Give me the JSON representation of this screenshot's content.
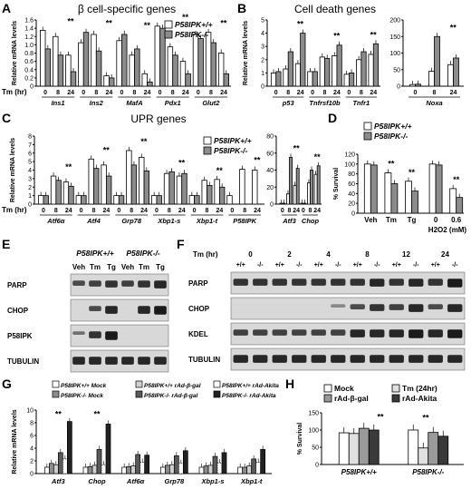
{
  "panels": {
    "a": {
      "letter": "A",
      "title": "β cell-specific genes"
    },
    "b": {
      "letter": "B",
      "title": "Cell death genes"
    },
    "c": {
      "letter": "C",
      "title": "UPR genes"
    },
    "d": {
      "letter": "D"
    },
    "e": {
      "letter": "E"
    },
    "f": {
      "letter": "F"
    },
    "g": {
      "letter": "G"
    },
    "h": {
      "letter": "H"
    }
  },
  "legend_wt": "P58IPK+/+",
  "legend_ko": "P58IPK-/-",
  "tm_label": "Tm (hr)",
  "timepoints": [
    "0",
    "8",
    "24"
  ],
  "colors": {
    "wt": "#ffffff",
    "ko": "#8c8c8c",
    "blot_band": "#1a1a1a",
    "blot_bg": "#d8d8d8"
  },
  "chart_data": [
    {
      "panel": "A",
      "type": "bar",
      "ylabel": "Relative mRNA levels",
      "ylim": [
        0,
        1.6
      ],
      "yticks": [
        "0",
        "0.2",
        "0.4",
        "0.6",
        "0.8",
        "1.0",
        "1.2",
        "1.4",
        "1.6"
      ],
      "categories": [
        "Ins1",
        "Ins2",
        "MafA",
        "Pdx1",
        "Glut2"
      ],
      "series": [
        {
          "name": "P58IPK+/+",
          "values": [
            [
              1.35,
              1.2,
              0.75
            ],
            [
              1.05,
              1.25,
              0.25
            ],
            [
              1.1,
              0.75,
              0.3
            ],
            [
              1.45,
              0.95,
              0.6
            ],
            [
              1.25,
              1.3,
              0.8
            ]
          ]
        },
        {
          "name": "P58IPK-/-",
          "values": [
            [
              0.9,
              0.75,
              0.35
            ],
            [
              1.3,
              0.85,
              0.2
            ],
            [
              1.25,
              0.9,
              0.1
            ],
            [
              1.4,
              0.75,
              0.3
            ],
            [
              1.15,
              1.05,
              0.3
            ]
          ]
        }
      ]
    },
    {
      "panel": "B1",
      "type": "bar",
      "ylabel": "Relative mRNA levels",
      "ylim": [
        0,
        5
      ],
      "yticks": [
        "0",
        "1",
        "2",
        "3",
        "4",
        "5"
      ],
      "categories": [
        "p53",
        "Tnfrsf10b",
        "Tnfr1"
      ],
      "series": [
        {
          "name": "P58IPK+/+",
          "values": [
            [
              1.0,
              1.3,
              1.7
            ],
            [
              1.1,
              2.2,
              2.3
            ],
            [
              0.9,
              2.0,
              2.4
            ]
          ]
        },
        {
          "name": "P58IPK-/-",
          "values": [
            [
              1.1,
              2.6,
              4.0
            ],
            [
              1.1,
              2.1,
              3.1
            ],
            [
              1.0,
              2.6,
              3.2
            ]
          ]
        }
      ]
    },
    {
      "panel": "B2",
      "type": "bar",
      "ylabel": "",
      "ylim": [
        0,
        200
      ],
      "yticks": [
        "0",
        "50",
        "100",
        "150",
        "200"
      ],
      "categories": [
        "Noxa"
      ],
      "series": [
        {
          "name": "P58IPK+/+",
          "values": [
            [
              5,
              45,
              65
            ]
          ]
        },
        {
          "name": "P58IPK-/-",
          "values": [
            [
              6,
              150,
              85
            ]
          ]
        }
      ]
    },
    {
      "panel": "C1",
      "type": "bar",
      "ylabel": "Relative mRNA levels",
      "ylim": [
        0,
        8
      ],
      "yticks": [
        "0",
        "1",
        "2",
        "3",
        "4",
        "5",
        "6",
        "7",
        "8"
      ],
      "categories": [
        "Atf6α",
        "Atf4",
        "Grp78",
        "Xbp1-s",
        "Xbp1-t",
        "P58IPK"
      ],
      "series": [
        {
          "name": "P58IPK+/+",
          "values": [
            [
              1.0,
              3.3,
              2.6
            ],
            [
              1.0,
              5.3,
              4.6
            ],
            [
              1.0,
              6.3,
              5.5
            ],
            [
              1.0,
              3.6,
              3.3
            ],
            [
              1.0,
              2.8,
              2.9
            ],
            [
              1.0,
              4.1,
              4.0
            ]
          ]
        },
        {
          "name": "P58IPK-/-",
          "values": [
            [
              1.0,
              2.8,
              2.1
            ],
            [
              1.0,
              4.2,
              3.3
            ],
            [
              1.0,
              4.6,
              3.9
            ],
            [
              1.0,
              3.8,
              3.6
            ],
            [
              1.0,
              2.2,
              2.0
            ],
            [
              0,
              0,
              0
            ]
          ]
        }
      ]
    },
    {
      "panel": "C2",
      "type": "bar",
      "ylabel": "",
      "ylim": [
        0,
        80
      ],
      "yticks": [
        "0",
        "20",
        "40",
        "60",
        "80"
      ],
      "categories": [
        "Atf3",
        "Chop"
      ],
      "series": [
        {
          "name": "P58IPK+/+",
          "values": [
            [
              1,
              12,
              22
            ],
            [
              1,
              25,
              35
            ]
          ]
        },
        {
          "name": "P58IPK-/-",
          "values": [
            [
              1,
              55,
              42
            ],
            [
              1,
              40,
              45
            ]
          ]
        }
      ]
    },
    {
      "panel": "D",
      "type": "bar",
      "ylabel": "% Survival",
      "ylim": [
        0,
        120
      ],
      "yticks": [
        "0",
        "20",
        "40",
        "60",
        "80",
        "100",
        "120"
      ],
      "categories": [
        "Veh",
        "Tm",
        "Tg",
        "0",
        "0.6"
      ],
      "xlabel": "H2O2 (mM)",
      "series": [
        {
          "name": "P58IPK+/+",
          "values": [
            100,
            82,
            65,
            100,
            50
          ]
        },
        {
          "name": "P58IPK-/-",
          "values": [
            98,
            60,
            45,
            98,
            32
          ]
        }
      ]
    },
    {
      "panel": "G",
      "type": "bar",
      "ylabel": "Relative mRNA levels",
      "ylim": [
        0,
        10
      ],
      "yticks": [
        "0",
        "2",
        "4",
        "6",
        "8",
        "10"
      ],
      "categories": [
        "Atf3",
        "Chop",
        "Atf6α",
        "Grp78",
        "Xbp1-s",
        "Xbp1-t"
      ],
      "series": [
        {
          "name": "P58IPK+/+ Mock",
          "values": [
            1.0,
            1.0,
            1.0,
            1.0,
            1.0,
            1.0
          ]
        },
        {
          "name": "P58IPK-/- Mock",
          "values": [
            1.6,
            1.1,
            1.1,
            1.3,
            1.2,
            1.0
          ]
        },
        {
          "name": "P58IPK+/+ rAd-β-gal",
          "values": [
            1.4,
            1.3,
            1.2,
            1.4,
            1.3,
            1.2
          ]
        },
        {
          "name": "P58IPK-/- rAd-β-gal",
          "values": [
            3.3,
            3.8,
            3.0,
            2.8,
            2.7,
            2.3
          ]
        },
        {
          "name": "P58IPK+/+ rAd-Akita",
          "values": [
            2.3,
            1.4,
            1.8,
            1.6,
            1.7,
            1.8
          ]
        },
        {
          "name": "P58IPK-/- rAd-Akita",
          "values": [
            8.2,
            7.8,
            2.9,
            3.6,
            3.3,
            3.8
          ]
        }
      ]
    },
    {
      "panel": "H",
      "type": "bar",
      "ylabel": "% Survival",
      "ylim": [
        0,
        150
      ],
      "yticks": [
        "0",
        "50",
        "100",
        "150"
      ],
      "categories": [
        "P58IPK+/+",
        "P58IPK-/-"
      ],
      "series": [
        {
          "name": "Mock",
          "values": [
            92,
            100
          ]
        },
        {
          "name": "Tm (24hr)",
          "values": [
            90,
            48
          ]
        },
        {
          "name": "rAd-β-gal",
          "values": [
            105,
            93
          ]
        },
        {
          "name": "rAd-Akita",
          "values": [
            100,
            82
          ]
        }
      ]
    }
  ],
  "significance": "**",
  "blot_e": {
    "groups": [
      "P58IPK+/+",
      "P58IPK-/-"
    ],
    "lanes": [
      "Veh",
      "Tm",
      "Tg",
      "Veh",
      "Tm",
      "Tg"
    ],
    "rows": [
      "PARP",
      "CHOP",
      "P58IPK",
      "TUBULIN"
    ]
  },
  "blot_f": {
    "tm_label": "Tm (hr)",
    "times": [
      "0",
      "2",
      "4",
      "8",
      "12",
      "24"
    ],
    "genotypes": [
      "+/+",
      "-/-"
    ],
    "rows": [
      "PARP",
      "CHOP",
      "KDEL",
      "TUBULIN"
    ]
  },
  "h_xlabels": [
    "P58IPK+/+",
    "P58IPK-/-"
  ]
}
